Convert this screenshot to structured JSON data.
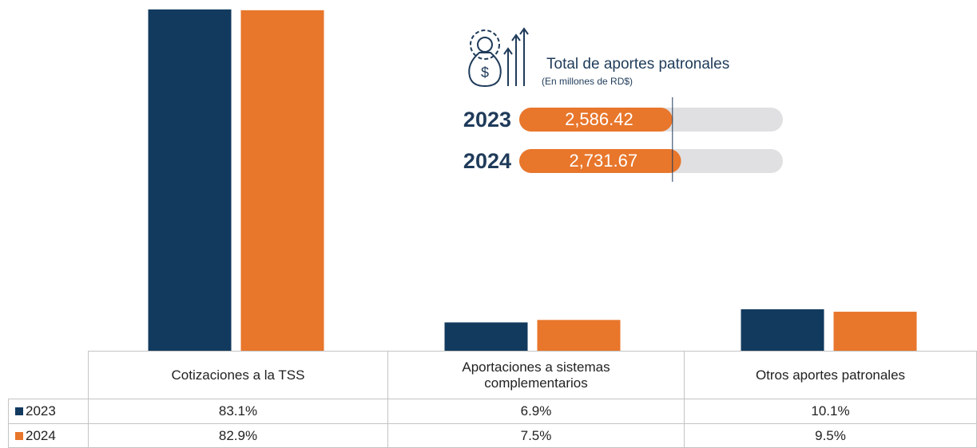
{
  "chart_data": {
    "type": "bar",
    "categories": [
      "Cotizaciones a la TSS",
      "Aportaciones a sistemas complementarios",
      "Otros aportes patronales"
    ],
    "series": [
      {
        "name": "2023",
        "color": "#123a5e",
        "values": [
          83.1,
          6.9,
          10.1
        ],
        "value_labels": [
          "83.1%",
          "6.9%",
          "10.1%"
        ]
      },
      {
        "name": "2024",
        "color": "#e8762b",
        "values": [
          82.9,
          7.5,
          9.5
        ],
        "value_labels": [
          "82.9%",
          "7.5%",
          "9.5%"
        ]
      }
    ],
    "ylim": [
      0,
      85
    ]
  },
  "inset": {
    "type": "bar",
    "title": "Total de aportes patronales",
    "subtitle": "(En millones de RD$)",
    "categories": [
      "2023",
      "2024"
    ],
    "values": [
      2586.42,
      2731.67
    ],
    "value_labels": [
      "2,586.42",
      "2,731.67"
    ],
    "color": "#e8762b",
    "track_color": "#e0e0e2",
    "xlim": [
      0,
      4450
    ]
  }
}
